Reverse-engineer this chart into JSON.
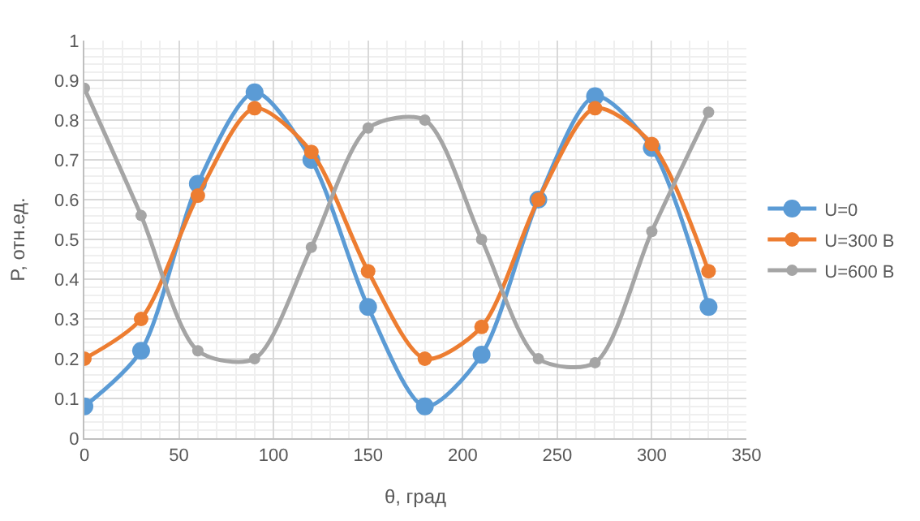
{
  "chart_data": {
    "type": "line",
    "xlabel": "θ, град",
    "ylabel": "P, отн.ед.",
    "x": [
      0,
      30,
      60,
      90,
      120,
      150,
      180,
      210,
      240,
      270,
      300,
      330
    ],
    "series": [
      {
        "name": "U=0",
        "color": "#5b9bd5",
        "values": [
          0.08,
          0.22,
          0.64,
          0.87,
          0.7,
          0.33,
          0.08,
          0.21,
          0.6,
          0.86,
          0.73,
          0.33
        ]
      },
      {
        "name": "U=300 В",
        "color": "#ed7d31",
        "values": [
          0.2,
          0.3,
          0.61,
          0.83,
          0.72,
          0.42,
          0.2,
          0.28,
          0.6,
          0.83,
          0.74,
          0.42
        ]
      },
      {
        "name": "U=600 В",
        "color": "#a5a5a5",
        "values": [
          0.88,
          0.56,
          0.22,
          0.2,
          0.48,
          0.78,
          0.8,
          0.5,
          0.2,
          0.19,
          0.52,
          0.82
        ]
      }
    ],
    "xlim": [
      0,
      350
    ],
    "xticks": [
      0,
      50,
      100,
      150,
      200,
      250,
      300,
      350
    ],
    "ylim": [
      0,
      1
    ],
    "yticks": [
      0,
      0.1,
      0.2,
      0.3,
      0.4,
      0.5,
      0.6,
      0.7,
      0.8,
      0.9,
      1
    ],
    "grid": true,
    "legend": "right",
    "marker": "circle",
    "line_style": "solid"
  }
}
